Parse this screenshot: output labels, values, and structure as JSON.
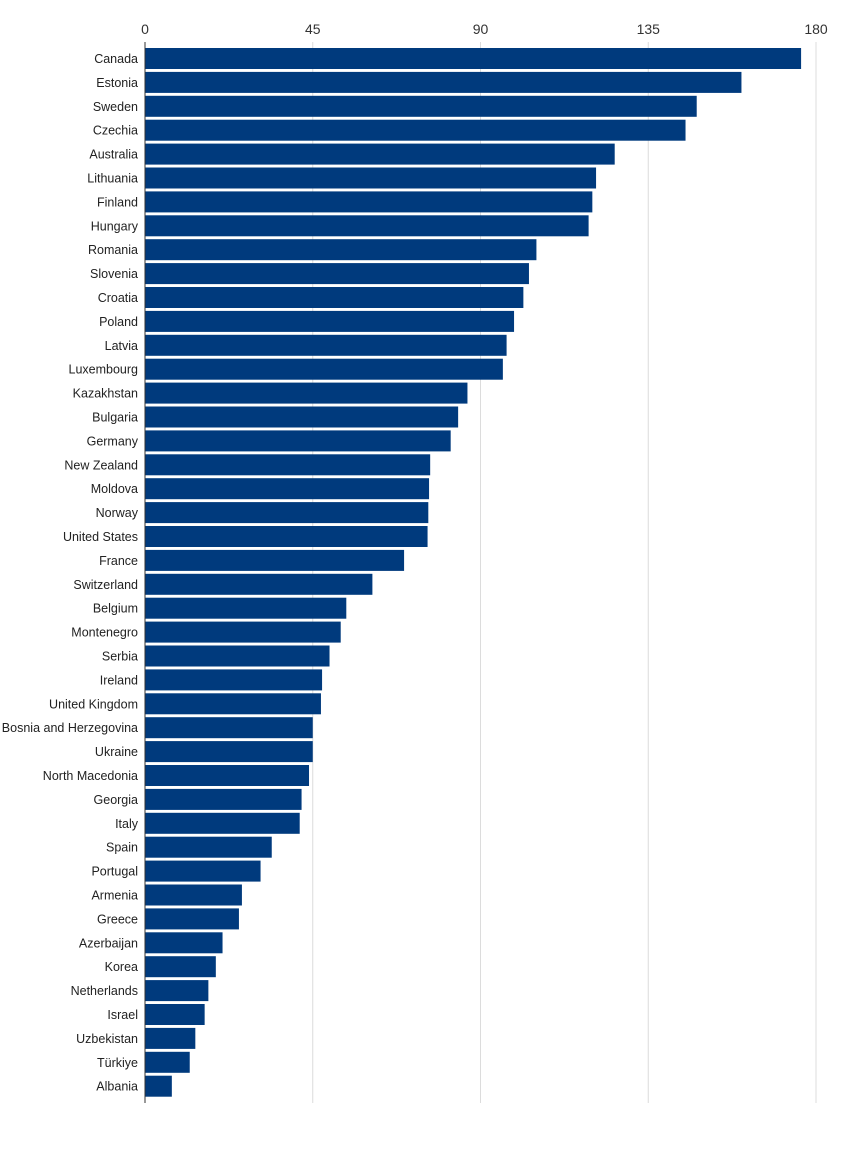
{
  "chart_data": {
    "type": "bar",
    "orientation": "horizontal",
    "title": "",
    "xlabel": "",
    "ylabel": "",
    "xlim": [
      0,
      180
    ],
    "xticks": [
      0,
      45,
      90,
      135,
      180
    ],
    "tick_position": "top",
    "grid": true,
    "bar_color": "#003a7d",
    "categories": [
      "Canada",
      "Estonia",
      "Sweden",
      "Czechia",
      "Australia",
      "Lithuania",
      "Finland",
      "Hungary",
      "Romania",
      "Slovenia",
      "Croatia",
      "Poland",
      "Latvia",
      "Luxembourg",
      "Kazakhstan",
      "Bulgaria",
      "Germany",
      "New Zealand",
      "Moldova",
      "Norway",
      "United States",
      "France",
      "Switzerland",
      "Belgium",
      "Montenegro",
      "Serbia",
      "Ireland",
      "United Kingdom",
      "Bosnia and Herzegovina",
      "Ukraine",
      "North Macedonia",
      "Georgia",
      "Italy",
      "Spain",
      "Portugal",
      "Armenia",
      "Greece",
      "Azerbaijan",
      "Korea",
      "Netherlands",
      "Israel",
      "Uzbekistan",
      "Türkiye",
      "Albania"
    ],
    "values": [
      176,
      160,
      148,
      145,
      126,
      121,
      120,
      119,
      105,
      103,
      101.5,
      99,
      97,
      96,
      86.5,
      84,
      82,
      76.5,
      76.2,
      76,
      75.8,
      69.5,
      61,
      54,
      52.5,
      49.5,
      47.5,
      47.2,
      45,
      45,
      44,
      42,
      41.5,
      34,
      31,
      26,
      25.2,
      20.8,
      19,
      17,
      16,
      13.5,
      12,
      7.2
    ]
  }
}
